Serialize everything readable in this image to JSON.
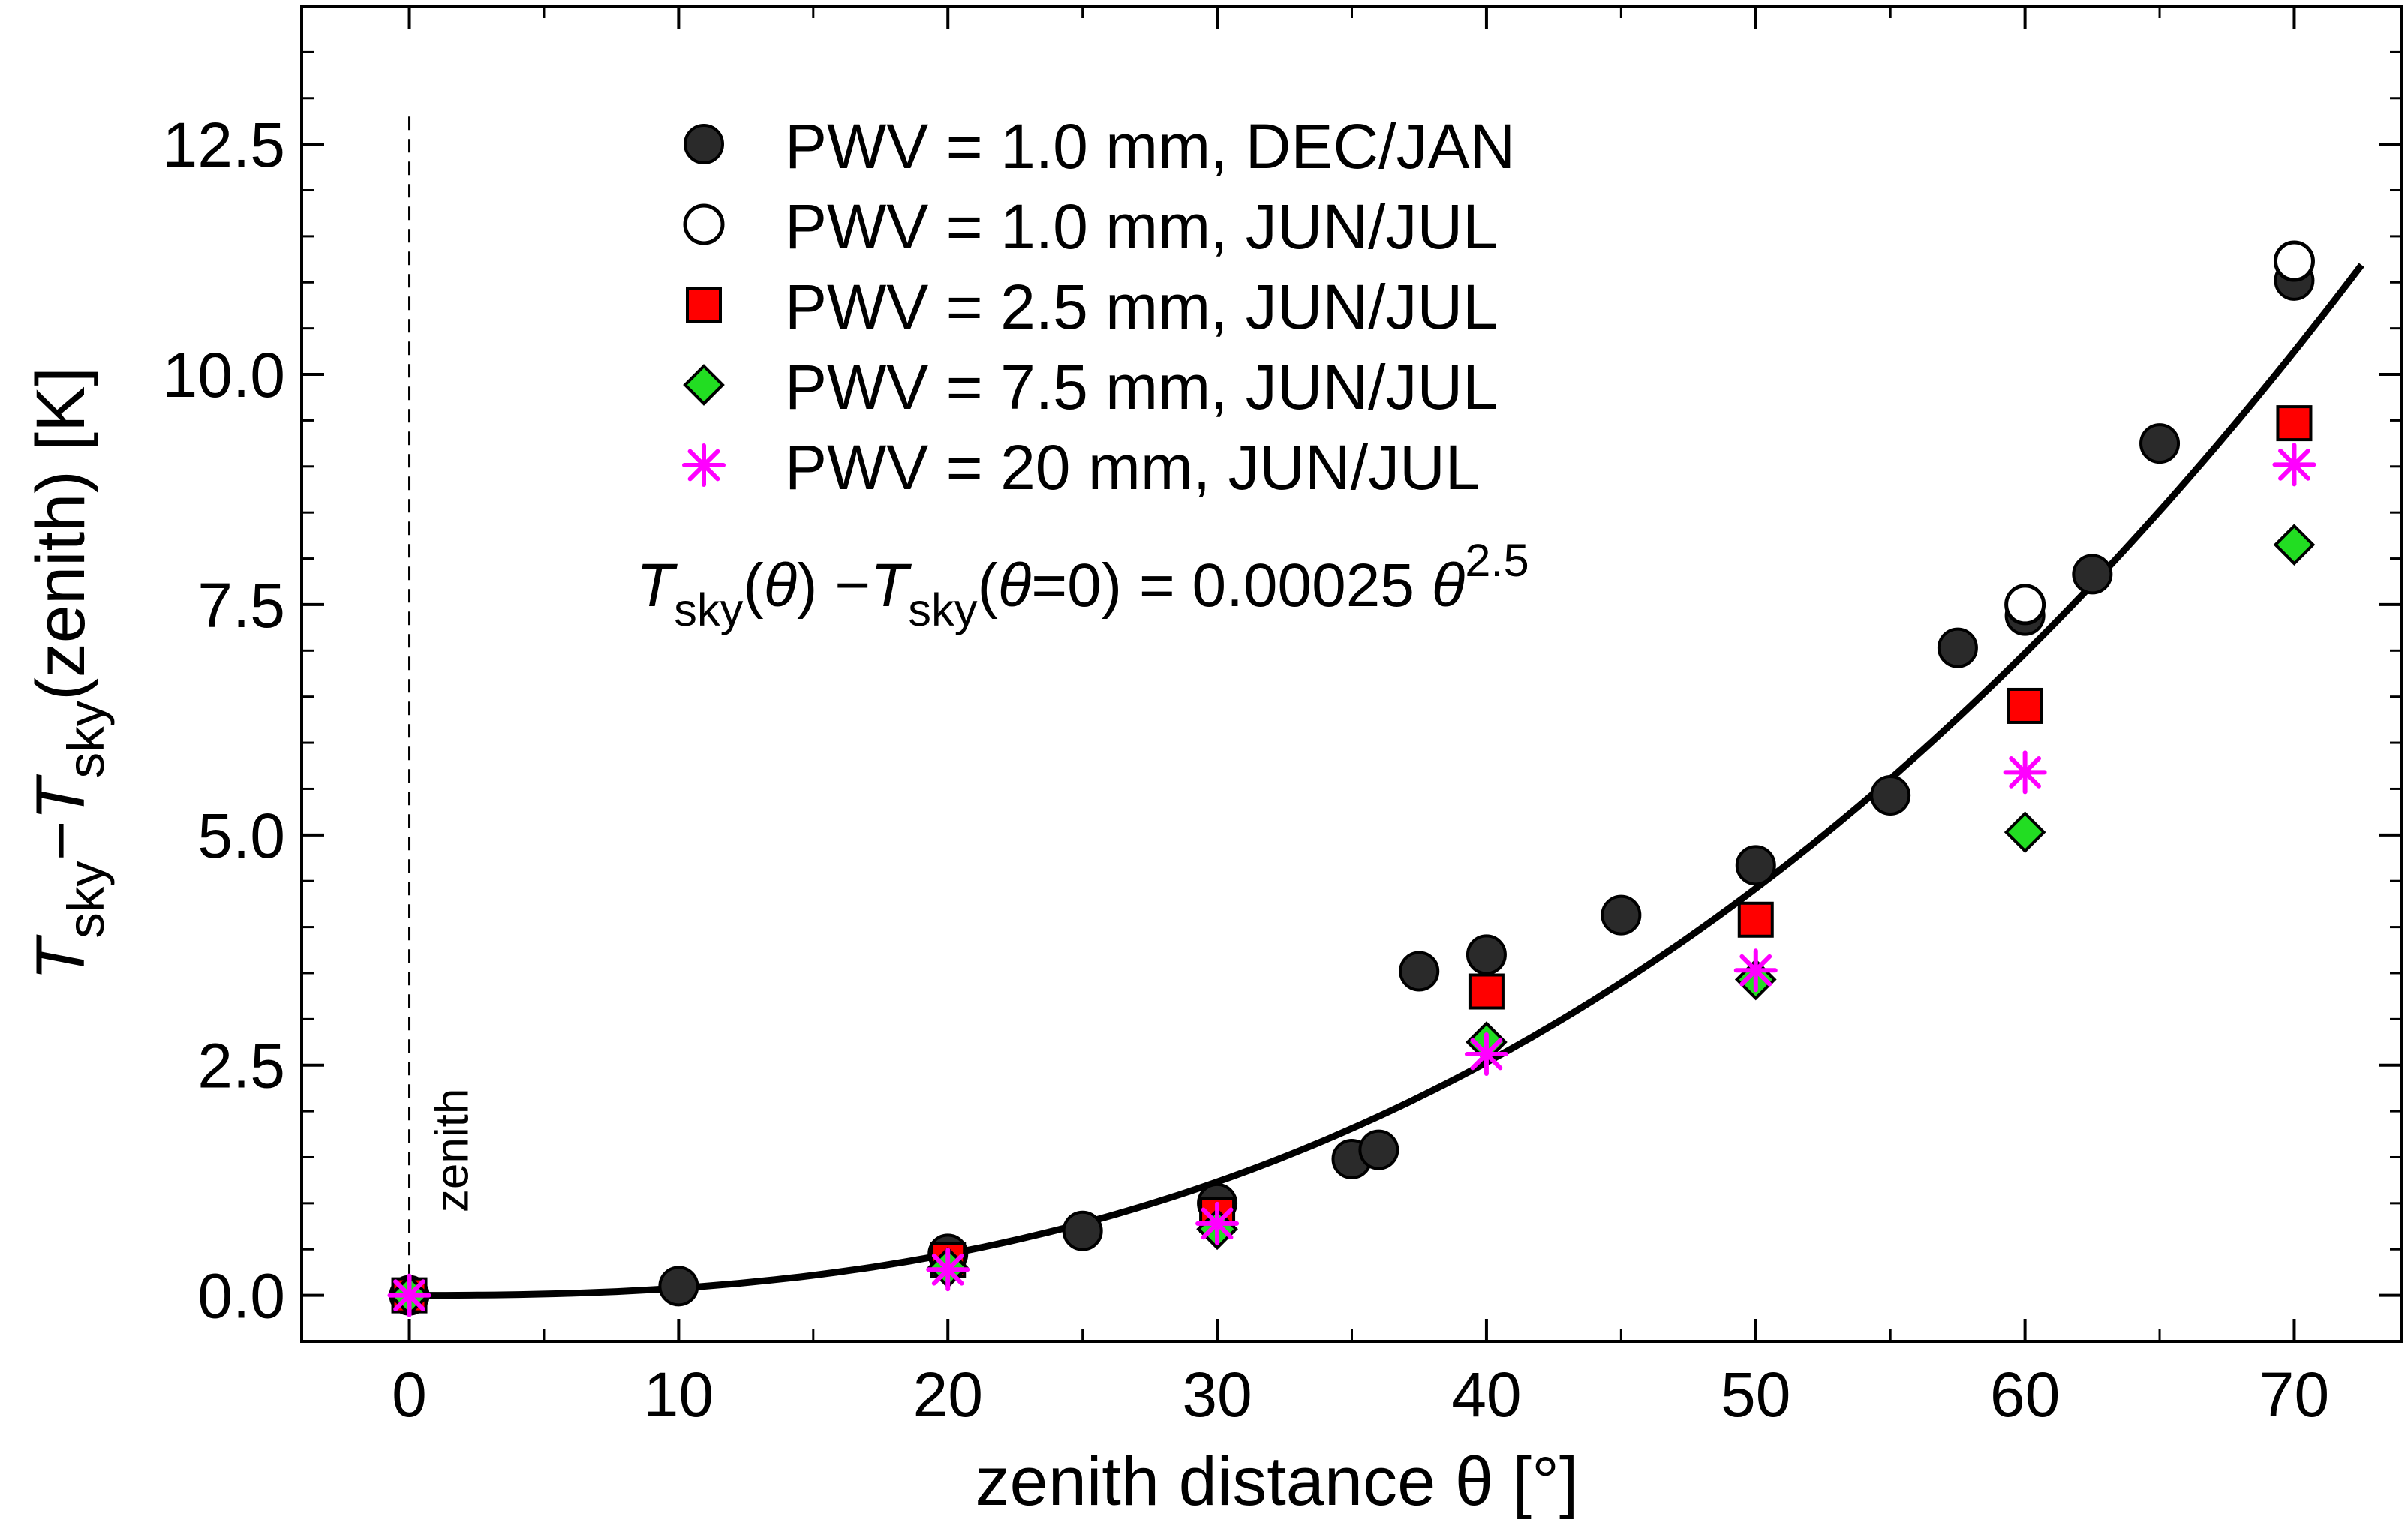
{
  "chart_data": {
    "type": "scatter",
    "xlabel": "zenith distance θ [°]",
    "ylabel": {
      "parts": [
        {
          "text": "T",
          "style": "italic"
        },
        {
          "text": "sky",
          "style": "sub"
        },
        {
          "text": "−",
          "style": "normal"
        },
        {
          "text": "T",
          "style": "italic"
        },
        {
          "text": "sky",
          "style": "sub"
        },
        {
          "text": "(zenith) [K]",
          "style": "normal"
        }
      ]
    },
    "xlim": [
      -4,
      74
    ],
    "ylim": [
      -0.5,
      14
    ],
    "x_ticks": [
      "0",
      "10",
      "20",
      "30",
      "40",
      "50",
      "60",
      "70"
    ],
    "x_tick_values": [
      0,
      10,
      20,
      30,
      40,
      50,
      60,
      70
    ],
    "y_ticks": [
      "0.0",
      "2.5",
      "5.0",
      "7.5",
      "10.0",
      "12.5"
    ],
    "y_tick_values": [
      0,
      2.5,
      5,
      7.5,
      10,
      12.5
    ],
    "annotation": {
      "text": "zenith",
      "x": 0
    },
    "formula": {
      "parts": [
        {
          "text": "T",
          "style": "italic"
        },
        {
          "text": "sky",
          "style": "sub"
        },
        {
          "text": "(",
          "style": "normal"
        },
        {
          "text": "θ",
          "style": "italic"
        },
        {
          "text": ") −",
          "style": "normal"
        },
        {
          "text": "T",
          "style": "italic"
        },
        {
          "text": "sky",
          "style": "sub"
        },
        {
          "text": "(",
          "style": "normal"
        },
        {
          "text": "θ",
          "style": "italic"
        },
        {
          "text": "=0) = 0.00025 ",
          "style": "normal"
        },
        {
          "text": "θ",
          "style": "italic"
        },
        {
          "text": "2.5",
          "style": "sup"
        }
      ]
    },
    "fit_curve": {
      "coefficient": 0.00025,
      "exponent": 2.5,
      "x_range": [
        0,
        72.5
      ]
    },
    "series": [
      {
        "name": "PWV = 1.0 mm, DEC/JAN",
        "marker": "filled-circle",
        "color": "#2a2a2a",
        "points": [
          [
            0,
            0
          ],
          [
            10,
            0.1
          ],
          [
            20,
            0.45
          ],
          [
            25,
            0.7
          ],
          [
            30,
            1.0
          ],
          [
            35,
            1.48
          ],
          [
            36,
            1.58
          ],
          [
            37.5,
            3.52
          ],
          [
            40,
            3.7
          ],
          [
            45,
            4.13
          ],
          [
            50,
            4.67
          ],
          [
            55,
            5.43
          ],
          [
            57.5,
            7.03
          ],
          [
            60,
            7.38
          ],
          [
            62.5,
            7.83
          ],
          [
            65,
            9.25
          ],
          [
            70,
            11.02
          ]
        ]
      },
      {
        "name": "PWV = 1.0 mm, JUN/JUL",
        "marker": "open-circle",
        "color": "#000000",
        "points": [
          [
            60,
            7.5
          ],
          [
            70,
            11.23
          ]
        ]
      },
      {
        "name": "PWV = 2.5 mm, JUN/JUL",
        "marker": "square",
        "color": "#ff0000",
        "points": [
          [
            0,
            0
          ],
          [
            20,
            0.38
          ],
          [
            30,
            0.87
          ],
          [
            40,
            3.3
          ],
          [
            50,
            4.08
          ],
          [
            60,
            6.4
          ],
          [
            70,
            9.47
          ]
        ]
      },
      {
        "name": "PWV = 7.5 mm, JUN/JUL",
        "marker": "diamond",
        "color": "#22dd22",
        "points": [
          [
            0,
            0
          ],
          [
            20,
            0.3
          ],
          [
            30,
            0.72
          ],
          [
            40,
            2.75
          ],
          [
            50,
            3.43
          ],
          [
            60,
            5.03
          ],
          [
            70,
            8.15
          ]
        ]
      },
      {
        "name": "PWV = 20 mm,  JUN/JUL",
        "marker": "asterisk",
        "color": "#ff00ff",
        "points": [
          [
            0,
            0
          ],
          [
            20,
            0.28
          ],
          [
            30,
            0.78
          ],
          [
            40,
            2.62
          ],
          [
            50,
            3.53
          ],
          [
            60,
            5.68
          ],
          [
            70,
            9.02
          ]
        ]
      }
    ],
    "legend_position": "top-center"
  }
}
